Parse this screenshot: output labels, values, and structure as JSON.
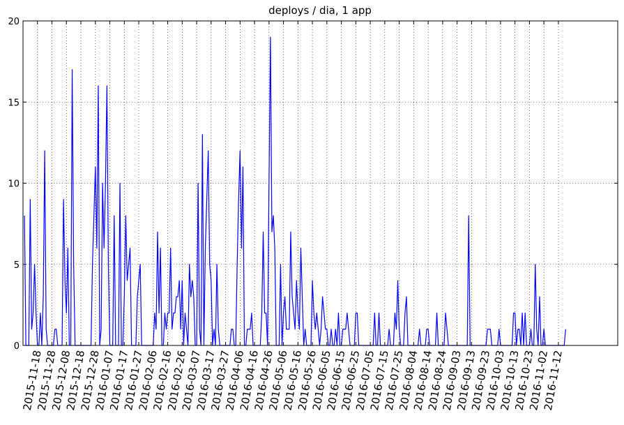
{
  "chart_data": {
    "type": "line",
    "title": "deploys / dia, 1 app",
    "color": "#0000ff",
    "grid": true,
    "xlim": [
      "2015-11-08",
      "2016-12-23"
    ],
    "ylim": [
      0,
      20
    ],
    "yticks": [
      0,
      5,
      10,
      15,
      20
    ],
    "xticks": [
      "2015-11-18",
      "2015-11-28",
      "2015-12-08",
      "2015-12-18",
      "2015-12-28",
      "2016-01-07",
      "2016-01-17",
      "2016-01-27",
      "2016-02-06",
      "2016-02-16",
      "2016-02-26",
      "2016-03-07",
      "2016-03-17",
      "2016-03-27",
      "2016-04-06",
      "2016-04-16",
      "2016-04-26",
      "2016-05-06",
      "2016-05-16",
      "2016-05-26",
      "2016-06-05",
      "2016-06-15",
      "2016-06-25",
      "2016-07-05",
      "2016-07-15",
      "2016-07-25",
      "2016-08-04",
      "2016-08-14",
      "2016-08-24",
      "2016-09-03",
      "2016-09-13",
      "2016-09-23",
      "2016-10-03",
      "2016-10-13",
      "2016-10-23",
      "2016-11-02",
      "2016-11-12"
    ],
    "x": [
      "2015-11-09",
      "2015-11-10",
      "2015-11-11",
      "2015-11-12",
      "2015-11-13",
      "2015-11-14",
      "2015-11-15",
      "2015-11-16",
      "2015-11-17",
      "2015-11-18",
      "2015-11-19",
      "2015-11-20",
      "2015-11-21",
      "2015-11-22",
      "2015-11-23",
      "2015-11-24",
      "2015-11-25",
      "2015-11-26",
      "2015-11-27",
      "2015-11-28",
      "2015-11-29",
      "2015-11-30",
      "2015-12-01",
      "2015-12-02",
      "2015-12-03",
      "2015-12-04",
      "2015-12-05",
      "2015-12-06",
      "2015-12-07",
      "2015-12-08",
      "2015-12-09",
      "2015-12-10",
      "2015-12-11",
      "2015-12-12",
      "2015-12-13",
      "2015-12-14",
      "2015-12-15",
      "2015-12-16",
      "2015-12-17",
      "2015-12-18",
      "2015-12-19",
      "2015-12-20",
      "2015-12-21",
      "2015-12-22",
      "2015-12-23",
      "2015-12-24",
      "2015-12-25",
      "2015-12-26",
      "2015-12-27",
      "2015-12-28",
      "2015-12-29",
      "2015-12-30",
      "2015-12-31",
      "2016-01-01",
      "2016-01-02",
      "2016-01-03",
      "2016-01-04",
      "2016-01-05",
      "2016-01-06",
      "2016-01-07",
      "2016-01-08",
      "2016-01-09",
      "2016-01-10",
      "2016-01-11",
      "2016-01-12",
      "2016-01-13",
      "2016-01-14",
      "2016-01-15",
      "2016-01-16",
      "2016-01-17",
      "2016-01-18",
      "2016-01-19",
      "2016-01-20",
      "2016-01-21",
      "2016-01-22",
      "2016-01-23",
      "2016-01-24",
      "2016-01-25",
      "2016-01-26",
      "2016-01-27",
      "2016-01-28",
      "2016-01-29",
      "2016-01-30",
      "2016-01-31",
      "2016-02-01",
      "2016-02-02",
      "2016-02-03",
      "2016-02-04",
      "2016-02-05",
      "2016-02-06",
      "2016-02-07",
      "2016-02-08",
      "2016-02-09",
      "2016-02-10",
      "2016-02-11",
      "2016-02-12",
      "2016-02-13",
      "2016-02-14",
      "2016-02-15",
      "2016-02-16",
      "2016-02-17",
      "2016-02-18",
      "2016-02-19",
      "2016-02-20",
      "2016-02-21",
      "2016-02-22",
      "2016-02-23",
      "2016-02-24",
      "2016-02-25",
      "2016-02-26",
      "2016-02-27",
      "2016-02-28",
      "2016-02-29",
      "2016-03-01",
      "2016-03-02",
      "2016-03-03",
      "2016-03-04",
      "2016-03-05",
      "2016-03-06",
      "2016-03-07",
      "2016-03-08",
      "2016-03-09",
      "2016-03-10",
      "2016-03-11",
      "2016-03-12",
      "2016-03-13",
      "2016-03-14",
      "2016-03-15",
      "2016-03-16",
      "2016-03-17",
      "2016-03-18",
      "2016-03-19",
      "2016-03-20",
      "2016-03-21",
      "2016-03-22",
      "2016-03-23",
      "2016-03-24",
      "2016-03-25",
      "2016-03-26",
      "2016-03-27",
      "2016-03-28",
      "2016-03-29",
      "2016-03-30",
      "2016-03-31",
      "2016-04-01",
      "2016-04-02",
      "2016-04-03",
      "2016-04-04",
      "2016-04-05",
      "2016-04-06",
      "2016-04-07",
      "2016-04-08",
      "2016-04-09",
      "2016-04-10",
      "2016-04-11",
      "2016-04-12",
      "2016-04-13",
      "2016-04-14",
      "2016-04-15",
      "2016-04-16",
      "2016-04-17",
      "2016-04-18",
      "2016-04-19",
      "2016-04-20",
      "2016-04-21",
      "2016-04-22",
      "2016-04-23",
      "2016-04-24",
      "2016-04-25",
      "2016-04-26",
      "2016-04-27",
      "2016-04-28",
      "2016-04-29",
      "2016-04-30",
      "2016-05-01",
      "2016-05-02",
      "2016-05-03",
      "2016-05-04",
      "2016-05-05",
      "2016-05-06",
      "2016-05-07",
      "2016-05-08",
      "2016-05-09",
      "2016-05-10",
      "2016-05-11",
      "2016-05-12",
      "2016-05-13",
      "2016-05-14",
      "2016-05-15",
      "2016-05-16",
      "2016-05-17",
      "2016-05-18",
      "2016-05-19",
      "2016-05-20",
      "2016-05-21",
      "2016-05-22",
      "2016-05-23",
      "2016-05-24",
      "2016-05-25",
      "2016-05-26",
      "2016-05-27",
      "2016-05-28",
      "2016-05-29",
      "2016-05-30",
      "2016-05-31",
      "2016-06-01",
      "2016-06-02",
      "2016-06-03",
      "2016-06-04",
      "2016-06-05",
      "2016-06-06",
      "2016-06-07",
      "2016-06-08",
      "2016-06-09",
      "2016-06-10",
      "2016-06-11",
      "2016-06-12",
      "2016-06-13",
      "2016-06-14",
      "2016-06-15",
      "2016-06-16",
      "2016-06-17",
      "2016-06-18",
      "2016-06-19",
      "2016-06-20",
      "2016-06-21",
      "2016-06-22",
      "2016-06-23",
      "2016-06-24",
      "2016-06-25",
      "2016-06-26",
      "2016-06-27",
      "2016-06-28",
      "2016-06-29",
      "2016-06-30",
      "2016-07-01",
      "2016-07-02",
      "2016-07-03",
      "2016-07-04",
      "2016-07-05",
      "2016-07-06",
      "2016-07-07",
      "2016-07-08",
      "2016-07-09",
      "2016-07-10",
      "2016-07-11",
      "2016-07-12",
      "2016-07-13",
      "2016-07-14",
      "2016-07-15",
      "2016-07-16",
      "2016-07-17",
      "2016-07-18",
      "2016-07-19",
      "2016-07-20",
      "2016-07-21",
      "2016-07-22",
      "2016-07-23",
      "2016-07-24",
      "2016-07-25",
      "2016-07-26",
      "2016-07-27",
      "2016-07-28",
      "2016-07-29",
      "2016-07-30",
      "2016-07-31",
      "2016-08-01",
      "2016-08-02",
      "2016-08-03",
      "2016-08-04",
      "2016-08-05",
      "2016-08-06",
      "2016-08-07",
      "2016-08-08",
      "2016-08-09",
      "2016-08-10",
      "2016-08-11",
      "2016-08-12",
      "2016-08-13",
      "2016-08-14",
      "2016-08-15",
      "2016-08-16",
      "2016-08-17",
      "2016-08-18",
      "2016-08-19",
      "2016-08-20",
      "2016-08-21",
      "2016-08-22",
      "2016-08-23",
      "2016-08-24",
      "2016-08-25",
      "2016-08-26",
      "2016-08-27",
      "2016-08-28",
      "2016-08-29",
      "2016-08-30",
      "2016-08-31",
      "2016-09-01",
      "2016-09-02",
      "2016-09-03",
      "2016-09-04",
      "2016-09-05",
      "2016-09-06",
      "2016-09-07",
      "2016-09-08",
      "2016-09-09",
      "2016-09-10",
      "2016-09-11",
      "2016-09-12",
      "2016-09-13",
      "2016-09-14",
      "2016-09-15",
      "2016-09-16",
      "2016-09-17",
      "2016-09-18",
      "2016-09-19",
      "2016-09-20",
      "2016-09-21",
      "2016-09-22",
      "2016-09-23",
      "2016-09-24",
      "2016-09-25",
      "2016-09-26",
      "2016-09-27",
      "2016-09-28",
      "2016-09-29",
      "2016-09-30",
      "2016-10-01",
      "2016-10-02",
      "2016-10-03",
      "2016-10-04",
      "2016-10-05",
      "2016-10-06",
      "2016-10-07",
      "2016-10-08",
      "2016-10-09",
      "2016-10-10",
      "2016-10-11",
      "2016-10-12",
      "2016-10-13",
      "2016-10-14",
      "2016-10-15",
      "2016-10-16",
      "2016-10-17",
      "2016-10-18",
      "2016-10-19",
      "2016-10-20",
      "2016-10-21",
      "2016-10-22",
      "2016-10-23",
      "2016-10-24",
      "2016-10-25",
      "2016-10-26",
      "2016-10-27",
      "2016-10-28",
      "2016-10-29",
      "2016-10-30",
      "2016-10-31",
      "2016-11-01",
      "2016-11-02",
      "2016-11-03",
      "2016-11-04",
      "2016-11-05",
      "2016-11-06",
      "2016-11-07",
      "2016-11-08",
      "2016-11-09",
      "2016-11-10",
      "2016-11-11",
      "2016-11-12",
      "2016-11-13",
      "2016-11-14",
      "2016-11-15",
      "2016-11-16",
      "2016-11-17"
    ],
    "values": [
      8,
      0,
      0,
      0,
      9,
      1,
      2,
      5,
      2,
      0,
      0,
      2,
      0,
      3,
      12,
      1,
      0,
      0,
      0,
      0,
      0,
      1,
      1,
      0,
      0,
      0,
      0,
      9,
      4,
      2,
      6,
      0,
      0,
      17,
      5,
      0,
      0,
      0,
      0,
      0,
      0,
      0,
      0,
      0,
      0,
      0,
      0,
      5,
      8,
      11,
      6,
      16,
      0,
      1,
      10,
      6,
      10,
      16,
      5,
      0,
      0,
      0,
      8,
      0,
      0,
      0,
      10,
      0,
      0,
      3,
      8,
      4,
      5,
      6,
      0,
      0,
      0,
      0,
      3,
      4,
      5,
      0,
      0,
      0,
      0,
      0,
      0,
      0,
      0,
      0,
      2,
      1,
      7,
      2,
      6,
      0,
      0,
      2,
      1,
      2,
      2,
      6,
      1,
      2,
      2,
      3,
      3,
      4,
      1,
      4,
      0,
      2,
      1,
      0,
      5,
      3,
      4,
      3,
      0,
      0,
      10,
      1,
      0,
      13,
      0,
      6,
      9,
      12,
      5,
      4,
      0,
      1,
      0,
      5,
      1,
      0,
      0,
      0,
      0,
      0,
      0,
      0,
      0,
      1,
      1,
      0,
      0,
      5,
      9,
      12,
      6,
      11,
      0,
      0,
      1,
      1,
      1,
      2,
      0,
      0,
      0,
      0,
      0,
      0,
      2,
      7,
      2,
      2,
      0,
      10,
      19,
      7,
      8,
      6,
      0,
      0,
      0,
      5,
      0,
      2,
      3,
      1,
      1,
      1,
      7,
      3,
      2,
      1,
      4,
      2,
      1,
      6,
      3,
      0,
      1,
      0,
      0,
      0,
      0,
      4,
      2,
      1,
      2,
      1,
      0,
      1,
      3,
      2,
      1,
      1,
      0,
      0,
      1,
      0,
      0,
      1,
      0,
      2,
      0,
      0,
      1,
      1,
      1,
      2,
      1,
      0,
      0,
      0,
      0,
      2,
      2,
      0,
      0,
      0,
      0,
      0,
      0,
      0,
      0,
      0,
      0,
      0,
      2,
      0,
      0,
      2,
      0,
      0,
      0,
      0,
      0,
      0,
      1,
      0,
      0,
      0,
      2,
      1,
      4,
      1,
      0,
      0,
      0,
      2,
      3,
      0,
      0,
      0,
      0,
      0,
      0,
      0,
      0,
      1,
      0,
      0,
      0,
      0,
      1,
      1,
      0,
      0,
      0,
      0,
      0,
      2,
      0,
      0,
      0,
      0,
      0,
      2,
      1,
      0,
      0,
      0,
      0,
      0,
      0,
      0,
      0,
      0,
      0,
      0,
      0,
      0,
      0,
      8,
      0,
      0,
      0,
      0,
      0,
      0,
      0,
      0,
      0,
      0,
      0,
      0,
      1,
      1,
      1,
      0,
      0,
      0,
      0,
      0,
      1,
      0,
      0,
      0,
      0,
      0,
      0,
      0,
      0,
      0,
      2,
      2,
      0,
      1,
      1,
      0,
      2,
      0,
      2,
      0,
      0,
      0,
      1,
      0,
      0,
      5,
      1,
      0,
      3,
      0,
      0,
      1,
      0,
      0,
      0,
      0,
      0,
      0,
      0,
      0,
      0,
      0,
      0,
      0,
      0,
      0,
      1
    ]
  }
}
